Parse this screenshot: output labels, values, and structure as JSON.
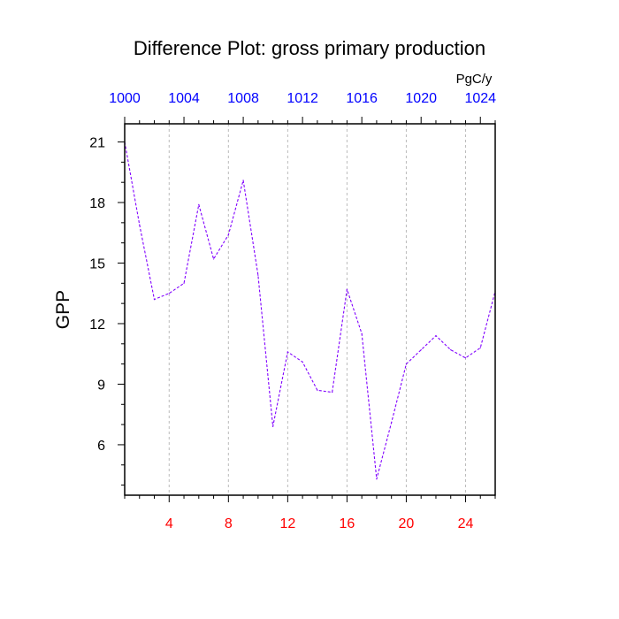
{
  "chart_data": {
    "type": "line",
    "title": "Difference Plot: gross primary production",
    "ylabel": "GPP",
    "units_label": "PgC/y",
    "xlim": [
      1,
      26
    ],
    "ylim": [
      3.5,
      21.9
    ],
    "grid_x": "dashed-vertical",
    "line_color": "#8000ff",
    "bottom_axis_color": "#ff0000",
    "top_axis_color": "#0000ff",
    "bottom_ticks": [
      4,
      8,
      12,
      16,
      20,
      24
    ],
    "bottom_tick_labels": [
      "4",
      "8",
      "12",
      "16",
      "20",
      "24"
    ],
    "top_ticks": [
      1000,
      1004,
      1008,
      1012,
      1016,
      1020,
      1024
    ],
    "top_tick_labels": [
      "1000",
      "1004",
      "1008",
      "1012",
      "1016",
      "1020",
      "1024"
    ],
    "top_axis_offset": 999,
    "y_ticks": [
      6,
      9,
      12,
      15,
      18,
      21
    ],
    "y_tick_labels": [
      "6",
      "9",
      "12",
      "15",
      "18",
      "21"
    ],
    "series": [
      {
        "x": [
          1,
          2,
          3,
          4,
          5,
          6,
          7,
          8,
          9,
          10,
          11,
          12,
          13,
          14,
          15,
          16,
          17,
          18,
          19,
          20,
          21,
          22,
          23,
          24,
          25,
          26
        ],
        "y": [
          21.0,
          16.9,
          13.2,
          13.5,
          14.0,
          17.9,
          15.2,
          16.4,
          19.1,
          14.4,
          6.9,
          10.6,
          10.1,
          8.7,
          8.6,
          13.7,
          11.5,
          4.3,
          7.1,
          10.0,
          10.7,
          11.4,
          10.7,
          10.3,
          10.8,
          13.6
        ]
      }
    ]
  }
}
